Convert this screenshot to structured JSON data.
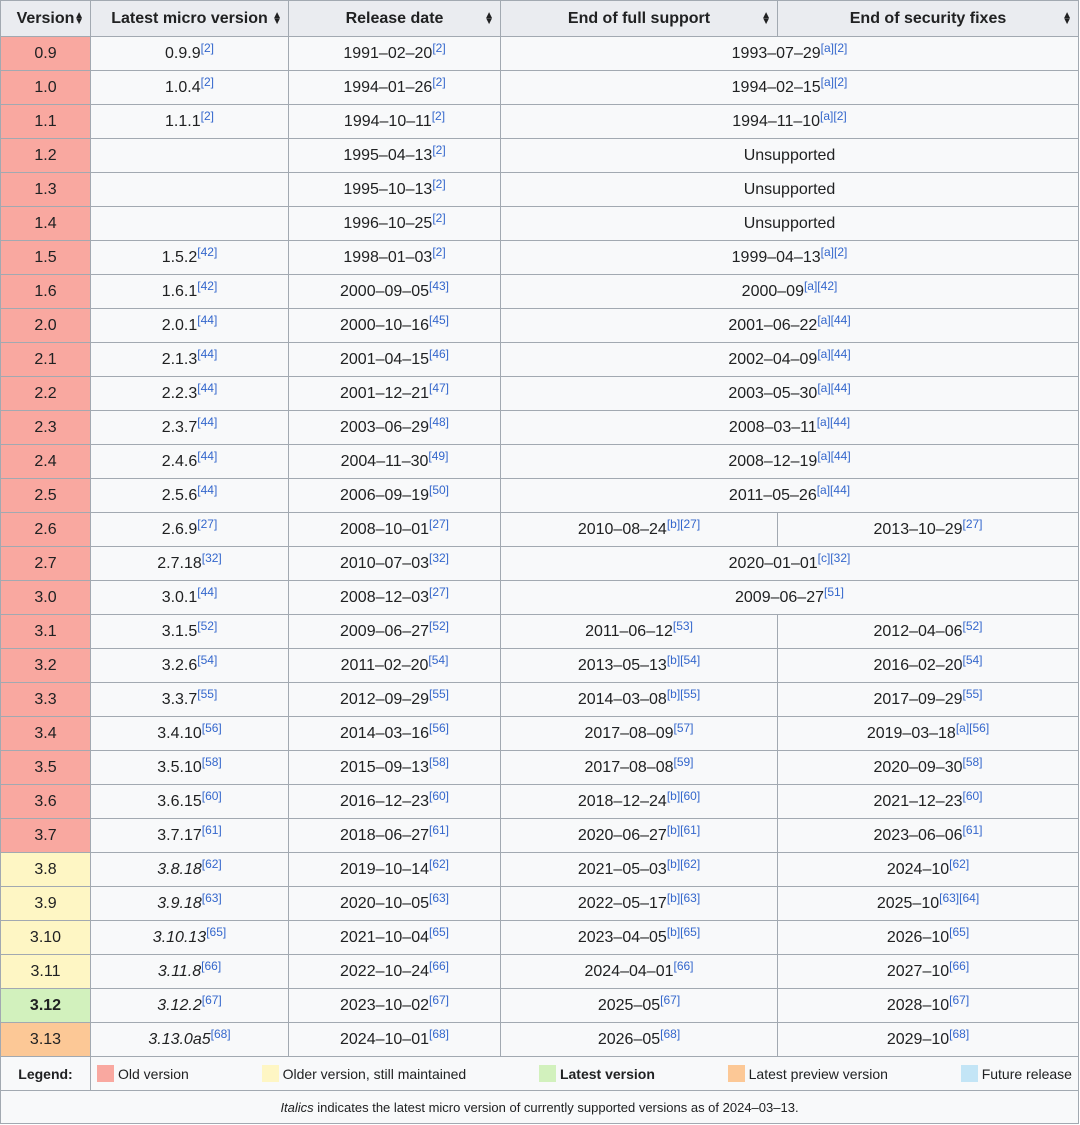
{
  "headers": {
    "version": "Version",
    "micro": "Latest micro version",
    "release": "Release date",
    "full": "End of full support",
    "security": "End of security fixes"
  },
  "colors": {
    "old": "#f9a8a0",
    "maintained": "#fef6c4",
    "latest": "#d2f1bd",
    "preview": "#fcc896",
    "future": "#c3e5f6"
  },
  "rows": [
    {
      "status": "old",
      "version": "0.9",
      "micro": "0.9.9",
      "micro_ref": "[2]",
      "release": "1991–02–20",
      "release_ref": "[2]",
      "merged": true,
      "support": "1993–07–29",
      "support_ref": "[a][2]"
    },
    {
      "status": "old",
      "version": "1.0",
      "micro": "1.0.4",
      "micro_ref": "[2]",
      "release": "1994–01–26",
      "release_ref": "[2]",
      "merged": true,
      "support": "1994–02–15",
      "support_ref": "[a][2]"
    },
    {
      "status": "old",
      "version": "1.1",
      "micro": "1.1.1",
      "micro_ref": "[2]",
      "release": "1994–10–11",
      "release_ref": "[2]",
      "merged": true,
      "support": "1994–11–10",
      "support_ref": "[a][2]"
    },
    {
      "status": "old",
      "version": "1.2",
      "micro": "",
      "micro_ref": "",
      "release": "1995–04–13",
      "release_ref": "[2]",
      "merged": true,
      "support": "Unsupported",
      "support_ref": ""
    },
    {
      "status": "old",
      "version": "1.3",
      "micro": "",
      "micro_ref": "",
      "release": "1995–10–13",
      "release_ref": "[2]",
      "merged": true,
      "support": "Unsupported",
      "support_ref": ""
    },
    {
      "status": "old",
      "version": "1.4",
      "micro": "",
      "micro_ref": "",
      "release": "1996–10–25",
      "release_ref": "[2]",
      "merged": true,
      "support": "Unsupported",
      "support_ref": ""
    },
    {
      "status": "old",
      "version": "1.5",
      "micro": "1.5.2",
      "micro_ref": "[42]",
      "release": "1998–01–03",
      "release_ref": "[2]",
      "merged": true,
      "support": "1999–04–13",
      "support_ref": "[a][2]"
    },
    {
      "status": "old",
      "version": "1.6",
      "micro": "1.6.1",
      "micro_ref": "[42]",
      "release": "2000–09–05",
      "release_ref": "[43]",
      "merged": true,
      "support": "2000–09",
      "support_ref": "[a][42]"
    },
    {
      "status": "old",
      "version": "2.0",
      "micro": "2.0.1",
      "micro_ref": "[44]",
      "release": "2000–10–16",
      "release_ref": "[45]",
      "merged": true,
      "support": "2001–06–22",
      "support_ref": "[a][44]"
    },
    {
      "status": "old",
      "version": "2.1",
      "micro": "2.1.3",
      "micro_ref": "[44]",
      "release": "2001–04–15",
      "release_ref": "[46]",
      "merged": true,
      "support": "2002–04–09",
      "support_ref": "[a][44]"
    },
    {
      "status": "old",
      "version": "2.2",
      "micro": "2.2.3",
      "micro_ref": "[44]",
      "release": "2001–12–21",
      "release_ref": "[47]",
      "merged": true,
      "support": "2003–05–30",
      "support_ref": "[a][44]"
    },
    {
      "status": "old",
      "version": "2.3",
      "micro": "2.3.7",
      "micro_ref": "[44]",
      "release": "2003–06–29",
      "release_ref": "[48]",
      "merged": true,
      "support": "2008–03–11",
      "support_ref": "[a][44]"
    },
    {
      "status": "old",
      "version": "2.4",
      "micro": "2.4.6",
      "micro_ref": "[44]",
      "release": "2004–11–30",
      "release_ref": "[49]",
      "merged": true,
      "support": "2008–12–19",
      "support_ref": "[a][44]"
    },
    {
      "status": "old",
      "version": "2.5",
      "micro": "2.5.6",
      "micro_ref": "[44]",
      "release": "2006–09–19",
      "release_ref": "[50]",
      "merged": true,
      "support": "2011–05–26",
      "support_ref": "[a][44]"
    },
    {
      "status": "old",
      "version": "2.6",
      "micro": "2.6.9",
      "micro_ref": "[27]",
      "release": "2008–10–01",
      "release_ref": "[27]",
      "merged": false,
      "full": "2010–08–24",
      "full_ref": "[b][27]",
      "security": "2013–10–29",
      "security_ref": "[27]"
    },
    {
      "status": "old",
      "version": "2.7",
      "micro": "2.7.18",
      "micro_ref": "[32]",
      "release": "2010–07–03",
      "release_ref": "[32]",
      "merged": true,
      "support": "2020–01–01",
      "support_ref": "[c][32]"
    },
    {
      "status": "old",
      "version": "3.0",
      "micro": "3.0.1",
      "micro_ref": "[44]",
      "release": "2008–12–03",
      "release_ref": "[27]",
      "merged": true,
      "support": "2009–06–27",
      "support_ref": "[51]"
    },
    {
      "status": "old",
      "version": "3.1",
      "micro": "3.1.5",
      "micro_ref": "[52]",
      "release": "2009–06–27",
      "release_ref": "[52]",
      "merged": false,
      "full": "2011–06–12",
      "full_ref": "[53]",
      "security": "2012–04–06",
      "security_ref": "[52]"
    },
    {
      "status": "old",
      "version": "3.2",
      "micro": "3.2.6",
      "micro_ref": "[54]",
      "release": "2011–02–20",
      "release_ref": "[54]",
      "merged": false,
      "full": "2013–05–13",
      "full_ref": "[b][54]",
      "security": "2016–02–20",
      "security_ref": "[54]"
    },
    {
      "status": "old",
      "version": "3.3",
      "micro": "3.3.7",
      "micro_ref": "[55]",
      "release": "2012–09–29",
      "release_ref": "[55]",
      "merged": false,
      "full": "2014–03–08",
      "full_ref": "[b][55]",
      "security": "2017–09–29",
      "security_ref": "[55]"
    },
    {
      "status": "old",
      "version": "3.4",
      "micro": "3.4.10",
      "micro_ref": "[56]",
      "release": "2014–03–16",
      "release_ref": "[56]",
      "merged": false,
      "full": "2017–08–09",
      "full_ref": "[57]",
      "security": "2019–03–18",
      "security_ref": "[a][56]"
    },
    {
      "status": "old",
      "version": "3.5",
      "micro": "3.5.10",
      "micro_ref": "[58]",
      "release": "2015–09–13",
      "release_ref": "[58]",
      "merged": false,
      "full": "2017–08–08",
      "full_ref": "[59]",
      "security": "2020–09–30",
      "security_ref": "[58]"
    },
    {
      "status": "old",
      "version": "3.6",
      "micro": "3.6.15",
      "micro_ref": "[60]",
      "release": "2016–12–23",
      "release_ref": "[60]",
      "merged": false,
      "full": "2018–12–24",
      "full_ref": "[b][60]",
      "security": "2021–12–23",
      "security_ref": "[60]"
    },
    {
      "status": "old",
      "version": "3.7",
      "micro": "3.7.17",
      "micro_ref": "[61]",
      "release": "2018–06–27",
      "release_ref": "[61]",
      "merged": false,
      "full": "2020–06–27",
      "full_ref": "[b][61]",
      "security": "2023–06–06",
      "security_ref": "[61]"
    },
    {
      "status": "maintained",
      "version": "3.8",
      "micro": "3.8.18",
      "micro_ref": "[62]",
      "italic": true,
      "release": "2019–10–14",
      "release_ref": "[62]",
      "merged": false,
      "full": "2021–05–03",
      "full_ref": "[b][62]",
      "security": "2024–10",
      "security_ref": "[62]"
    },
    {
      "status": "maintained",
      "version": "3.9",
      "micro": "3.9.18",
      "micro_ref": "[63]",
      "italic": true,
      "release": "2020–10–05",
      "release_ref": "[63]",
      "merged": false,
      "full": "2022–05–17",
      "full_ref": "[b][63]",
      "security": "2025–10",
      "security_ref": "[63][64]"
    },
    {
      "status": "maintained",
      "version": "3.10",
      "micro": "3.10.13",
      "micro_ref": "[65]",
      "italic": true,
      "release": "2021–10–04",
      "release_ref": "[65]",
      "merged": false,
      "full": "2023–04–05",
      "full_ref": "[b][65]",
      "security": "2026–10",
      "security_ref": "[65]"
    },
    {
      "status": "maintained",
      "version": "3.11",
      "micro": "3.11.8",
      "micro_ref": "[66]",
      "italic": true,
      "release": "2022–10–24",
      "release_ref": "[66]",
      "merged": false,
      "full": "2024–04–01",
      "full_ref": "[66]",
      "security": "2027–10",
      "security_ref": "[66]"
    },
    {
      "status": "latest",
      "version": "3.12",
      "micro": "3.12.2",
      "micro_ref": "[67]",
      "italic": true,
      "release": "2023–10–02",
      "release_ref": "[67]",
      "merged": false,
      "full": "2025–05",
      "full_ref": "[67]",
      "security": "2028–10",
      "security_ref": "[67]"
    },
    {
      "status": "preview",
      "version": "3.13",
      "micro": "3.13.0a5",
      "micro_ref": "[68]",
      "italic": true,
      "release": "2024–10–01",
      "release_ref": "[68]",
      "merged": false,
      "full": "2026–05",
      "full_ref": "[68]",
      "security": "2029–10",
      "security_ref": "[68]"
    }
  ],
  "legend": {
    "label": "Legend:",
    "items": [
      {
        "key": "old",
        "text": "Old version"
      },
      {
        "key": "maintained",
        "text": "Older version, still maintained"
      },
      {
        "key": "latest",
        "text": "Latest version",
        "bold": true
      },
      {
        "key": "preview",
        "text": "Latest preview version"
      },
      {
        "key": "future",
        "text": "Future release"
      }
    ]
  },
  "note": {
    "emphasis": "Italics",
    "rest": " indicates the latest micro version of currently supported versions as of 2024–03–13."
  }
}
